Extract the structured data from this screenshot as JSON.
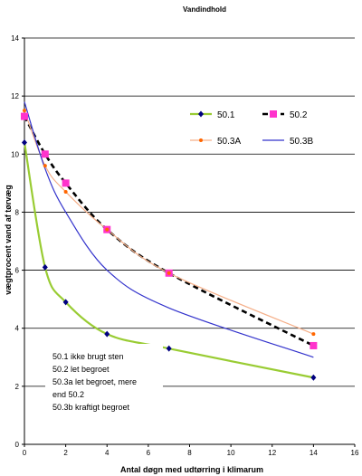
{
  "chart_data": {
    "type": "line",
    "title": "Vandindhold",
    "xlabel": "Antal døgn med udtørring i klimarum",
    "ylabel": "vægtprocent vand af tørvæg",
    "xlim": [
      0,
      16
    ],
    "ylim": [
      0,
      14
    ],
    "x_ticks": [
      0,
      2,
      4,
      6,
      8,
      10,
      12,
      14,
      16
    ],
    "y_ticks": [
      0,
      2,
      4,
      6,
      8,
      10,
      12,
      14
    ],
    "grid": "horizontal",
    "legend_position": "top-right",
    "series": [
      {
        "name": "50.1",
        "color": "#99cc33",
        "line_style": "solid",
        "marker": "diamond",
        "marker_color": "#000080",
        "points": [
          [
            0,
            10.4
          ],
          [
            1,
            6.1
          ],
          [
            2,
            4.9
          ],
          [
            4,
            3.8
          ],
          [
            7,
            3.3
          ],
          [
            14,
            2.3
          ]
        ]
      },
      {
        "name": "50.2",
        "color": "#000000",
        "line_style": "dashed",
        "marker": "square",
        "marker_color": "#ff33cc",
        "points": [
          [
            0,
            11.3
          ],
          [
            1,
            10.0
          ],
          [
            2,
            9.0
          ],
          [
            4,
            7.4
          ],
          [
            7,
            5.9
          ],
          [
            14,
            3.4
          ]
        ]
      },
      {
        "name": "50.3A",
        "color": "#f5b08a",
        "line_style": "solid",
        "marker": "circle",
        "marker_color": "#ff6600",
        "points": [
          [
            0,
            11.5
          ],
          [
            1,
            9.6
          ],
          [
            2,
            8.7
          ],
          [
            4,
            7.4
          ],
          [
            7,
            5.9
          ],
          [
            14,
            3.8
          ]
        ]
      },
      {
        "name": "50.3B",
        "color": "#3333cc",
        "line_style": "solid",
        "marker": "none",
        "points": [
          [
            0,
            11.8
          ],
          [
            1,
            9.5
          ],
          [
            2,
            8.0
          ],
          [
            4,
            6.0
          ],
          [
            7,
            4.7
          ],
          [
            14,
            3.0
          ]
        ]
      }
    ],
    "annotation_lines": [
      "50.1 ikke brugt sten",
      "50.2 let begroet",
      "50.3a let begroet, mere",
      "end 50.2",
      "50.3b kraftigt begroet"
    ]
  }
}
